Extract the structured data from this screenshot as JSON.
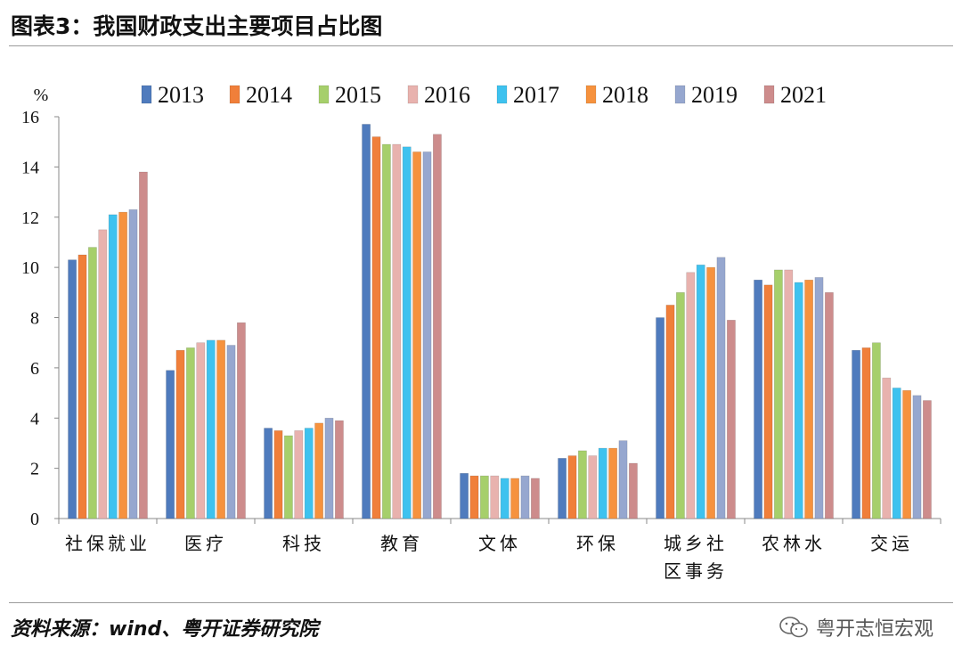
{
  "header": {
    "title": "图表3：我国财政支出主要项目占比图"
  },
  "footer": {
    "source": "资料来源：wind、粤开证券研究院",
    "watermark": "粤开志恒宏观"
  },
  "chart_data": {
    "type": "bar",
    "ylabel": "%",
    "ylim": [
      0,
      16
    ],
    "yticks": [
      0,
      2,
      4,
      6,
      8,
      10,
      12,
      14,
      16
    ],
    "grid": false,
    "legend_position": "top",
    "categories": [
      "社保就业",
      "医疗",
      "科技",
      "教育",
      "文体",
      "环保",
      "城乡社区事务",
      "农林水",
      "交运"
    ],
    "category_lines": [
      [
        "社保就业"
      ],
      [
        "医疗"
      ],
      [
        "科技"
      ],
      [
        "教育"
      ],
      [
        "文体"
      ],
      [
        "环保"
      ],
      [
        "城乡社",
        "区事务"
      ],
      [
        "农林水"
      ],
      [
        "交运"
      ]
    ],
    "series": [
      {
        "name": "2013",
        "color": "#4f7bbd",
        "values": [
          10.3,
          5.9,
          3.6,
          15.7,
          1.8,
          2.4,
          8.0,
          9.5,
          6.7
        ]
      },
      {
        "name": "2014",
        "color": "#f07f3a",
        "values": [
          10.5,
          6.7,
          3.5,
          15.2,
          1.7,
          2.5,
          8.5,
          9.3,
          6.8
        ]
      },
      {
        "name": "2015",
        "color": "#a6cf6b",
        "values": [
          10.8,
          6.8,
          3.3,
          14.9,
          1.7,
          2.7,
          9.0,
          9.9,
          7.0
        ]
      },
      {
        "name": "2016",
        "color": "#e8b2ae",
        "values": [
          11.5,
          7.0,
          3.5,
          14.9,
          1.7,
          2.5,
          9.8,
          9.9,
          5.6
        ]
      },
      {
        "name": "2017",
        "color": "#3ec2ef",
        "values": [
          12.1,
          7.1,
          3.6,
          14.8,
          1.6,
          2.8,
          10.1,
          9.4,
          5.2
        ]
      },
      {
        "name": "2018",
        "color": "#f6923e",
        "values": [
          12.2,
          7.1,
          3.8,
          14.6,
          1.6,
          2.8,
          10.0,
          9.5,
          5.1
        ]
      },
      {
        "name": "2019",
        "color": "#96a7cf",
        "values": [
          12.3,
          6.9,
          4.0,
          14.6,
          1.7,
          3.1,
          10.4,
          9.6,
          4.9
        ]
      },
      {
        "name": "2021",
        "color": "#cd8c8c",
        "values": [
          13.8,
          7.8,
          3.9,
          15.3,
          1.6,
          2.2,
          7.9,
          9.0,
          4.7
        ]
      }
    ]
  }
}
